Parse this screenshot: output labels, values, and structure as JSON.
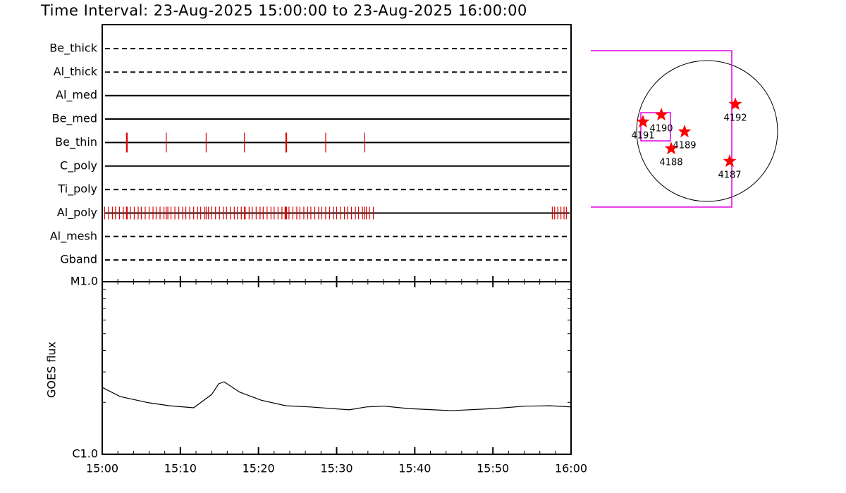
{
  "chart_data": [
    {
      "type": "event",
      "title": "Time Interval: 23-Aug-2025 15:00:00 to 23-Aug-2025 16:00:00",
      "categories": [
        "Be_thick",
        "Al_thick",
        "Al_med",
        "Be_med",
        "Be_thin",
        "C_poly",
        "Ti_poly",
        "Al_poly",
        "Al_mesh",
        "Gband"
      ],
      "line_styles": [
        "dashed",
        "dashed",
        "solid",
        "solid",
        "solid",
        "solid",
        "dashed",
        "solid",
        "dashed",
        "dashed"
      ],
      "color": "#e00000",
      "xlim": [
        0,
        60
      ],
      "events": [
        [],
        [],
        [],
        [],
        [
          3.1,
          3.2,
          8.2,
          13.3,
          18.2,
          23.5,
          23.6,
          28.6,
          33.6
        ],
        [],
        [],
        [
          0.3,
          0.8,
          1.3,
          1.7,
          2.2,
          2.7,
          3.1,
          3.2,
          3.6,
          4.1,
          4.6,
          5.0,
          5.5,
          6.0,
          6.5,
          6.9,
          7.4,
          7.9,
          8.2,
          8.4,
          8.8,
          9.3,
          9.8,
          10.3,
          10.7,
          11.2,
          11.7,
          12.2,
          12.6,
          13.1,
          13.3,
          13.6,
          14.0,
          14.5,
          15.0,
          15.5,
          15.9,
          16.4,
          16.9,
          17.3,
          17.8,
          18.2,
          18.3,
          18.8,
          19.2,
          19.7,
          20.2,
          20.6,
          21.1,
          21.6,
          22.0,
          22.5,
          23.0,
          23.4,
          23.5,
          23.6,
          23.9,
          24.4,
          24.9,
          25.3,
          25.8,
          26.3,
          26.7,
          27.2,
          27.7,
          28.1,
          28.6,
          29.1,
          29.6,
          30.0,
          30.5,
          31.0,
          31.4,
          31.9,
          32.4,
          32.8,
          33.3,
          33.6,
          33.8,
          34.2,
          34.7,
          57.6,
          57.9,
          58.3,
          58.7,
          59.1,
          59.4
        ],
        [],
        []
      ]
    },
    {
      "type": "line",
      "ylabel": "GOES flux",
      "log_scale": true,
      "color": "#000000",
      "xlim": [
        0,
        60
      ],
      "xticks": [
        {
          "value": 0,
          "label": "15:00"
        },
        {
          "value": 10,
          "label": "15:10"
        },
        {
          "value": 20,
          "label": "15:20"
        },
        {
          "value": 30,
          "label": "15:30"
        },
        {
          "value": 40,
          "label": "15:40"
        },
        {
          "value": 50,
          "label": "15:50"
        },
        {
          "value": 60,
          "label": "16:00"
        }
      ],
      "ylim": [
        1e-06,
        1e-05
      ],
      "yticks": [
        {
          "value": 1e-06,
          "label": "C1.0"
        },
        {
          "value": 1e-05,
          "label": "M1.0"
        }
      ],
      "x": [
        0,
        2.3,
        5.9,
        8.6,
        11.7,
        14,
        14.9,
        15.6,
        17.6,
        20.3,
        23.5,
        26.6,
        31.6,
        33.8,
        36.1,
        39.2,
        44.7,
        50.1,
        54.1,
        57.3,
        60
      ],
      "values": [
        2.44e-06,
        2.16e-06,
        1.99e-06,
        1.91e-06,
        1.86e-06,
        2.22e-06,
        2.56e-06,
        2.63e-06,
        2.29e-06,
        2.06e-06,
        1.91e-06,
        1.88e-06,
        1.81e-06,
        1.88e-06,
        1.9e-06,
        1.84e-06,
        1.79e-06,
        1.84e-06,
        1.9e-06,
        1.91e-06,
        1.88e-06
      ]
    },
    {
      "type": "map",
      "regions": [
        "4191",
        "4190",
        "4189",
        "4188",
        "4192",
        "4187"
      ],
      "color": "#ff0000"
    }
  ]
}
